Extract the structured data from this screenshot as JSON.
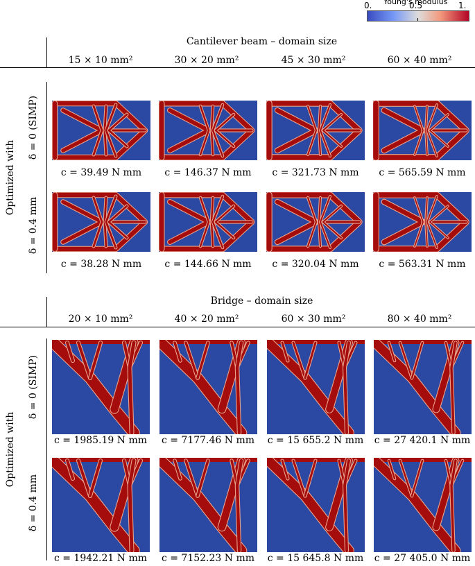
{
  "colorbar": {
    "title": "Young's modulus",
    "ticks": [
      "0.",
      "0.5",
      "1."
    ],
    "colors": {
      "low": "#3b4cc0",
      "mid": "#dddcdc",
      "high": "#b40426"
    }
  },
  "cantilever": {
    "title": "Cantilever beam – domain size",
    "columns": [
      "15 × 10 mm²",
      "30 × 20 mm²",
      "45 × 30 mm²",
      "60 × 40 mm²"
    ],
    "group_label": "Optimized with",
    "rows": [
      {
        "label": "δ = 0 (SIMP)",
        "captions": [
          "c = 39.49 N mm",
          "c = 146.37 N mm",
          "c = 321.73 N mm",
          "c = 565.59 N mm"
        ]
      },
      {
        "label": "δ = 0.4 mm",
        "captions": [
          "c = 38.28 N mm",
          "c = 144.66 N mm",
          "c = 320.04 N mm",
          "c = 563.31 N mm"
        ]
      }
    ]
  },
  "bridge": {
    "title": "Bridge – domain size",
    "columns": [
      "20 × 10 mm²",
      "40 × 20 mm²",
      "60 × 30 mm²",
      "80 × 40 mm²"
    ],
    "group_label": "Optimized with",
    "rows": [
      {
        "label": "δ = 0 (SIMP)",
        "captions": [
          "c = 1985.19 N mm",
          "c = 7177.46 N mm",
          "c = 15 655.2 N mm",
          "c = 27 420.1 N mm"
        ]
      },
      {
        "label": "δ = 0.4 mm",
        "captions": [
          "c = 1942.21 N mm",
          "c = 7152.23 N mm",
          "c = 15 645.8 N mm",
          "c = 27 405.0 N mm"
        ]
      }
    ]
  },
  "colors": {
    "void": "#2b48a3",
    "solid": "#a50c0c",
    "edge": "#e9a38d"
  }
}
